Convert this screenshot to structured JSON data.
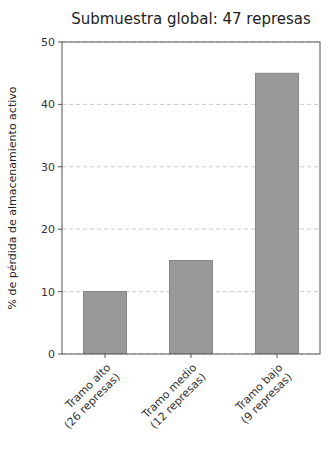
{
  "chart_data": {
    "type": "bar",
    "title": "Submuestra global: 47 represas",
    "categories": [
      "Tramo alto\n(26 represas)",
      "Tramo medio\n(12 represas)",
      "Tramo bajo\n(9 represas)"
    ],
    "values": [
      10,
      15,
      45
    ],
    "color": "#999999",
    "ylabel": "% de pérdida de almacenamiento activo",
    "ylim": [
      0,
      50
    ],
    "yticks": [
      0,
      10,
      20,
      30,
      40,
      50
    ],
    "grid": true
  }
}
